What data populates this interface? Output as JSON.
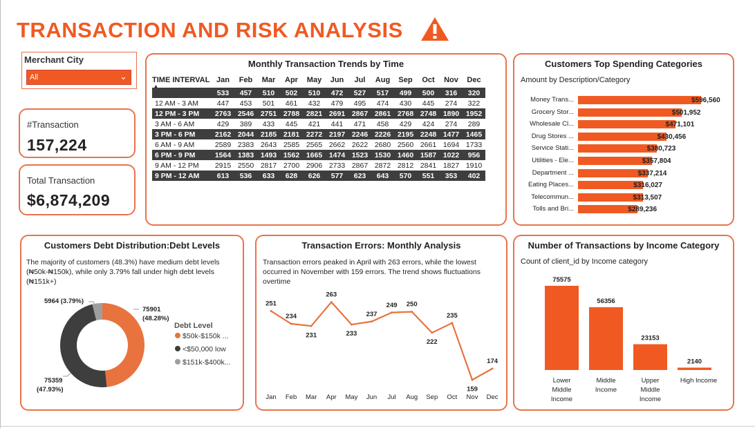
{
  "title": "TRANSACTION AND RISK ANALYSIS",
  "colors": {
    "accent": "#f05a22",
    "dark": "#3e3e3e",
    "grey": "#9e9e9e"
  },
  "slicer": {
    "label": "Merchant City",
    "value": "All"
  },
  "kpis": {
    "transactions_label": "#Transaction",
    "transactions_value": "157,224",
    "total_label": "Total Transaction",
    "total_value": "$6,874,209"
  },
  "heatmap": {
    "title": "Monthly Transaction Trends by Time",
    "col_header": "TIME INTERVAL",
    "months": [
      "Jan",
      "Feb",
      "Mar",
      "Apr",
      "May",
      "Jun",
      "Jul",
      "Aug",
      "Sep",
      "Oct",
      "Nov",
      "Dec"
    ],
    "rows": [
      {
        "label": "",
        "values": [
          533,
          457,
          510,
          502,
          510,
          472,
          527,
          517,
          499,
          500,
          316,
          320
        ],
        "dark": true
      },
      {
        "label": "12 AM - 3 AM",
        "values": [
          447,
          453,
          501,
          461,
          432,
          479,
          495,
          474,
          430,
          445,
          274,
          322
        ],
        "dark": false
      },
      {
        "label": "12 PM - 3 PM",
        "values": [
          2763,
          2546,
          2751,
          2788,
          2821,
          2691,
          2867,
          2861,
          2768,
          2748,
          1890,
          1952
        ],
        "dark": true
      },
      {
        "label": "3 AM - 6 AM",
        "values": [
          429,
          389,
          433,
          445,
          421,
          441,
          471,
          458,
          429,
          424,
          274,
          289
        ],
        "dark": false
      },
      {
        "label": "3 PM - 6 PM",
        "values": [
          2162,
          2044,
          2185,
          2181,
          2272,
          2197,
          2246,
          2226,
          2195,
          2248,
          1477,
          1465
        ],
        "dark": true
      },
      {
        "label": "6 AM - 9 AM",
        "values": [
          2589,
          2383,
          2643,
          2585,
          2565,
          2662,
          2622,
          2680,
          2560,
          2661,
          1694,
          1733
        ],
        "dark": false
      },
      {
        "label": "6 PM - 9 PM",
        "values": [
          1564,
          1383,
          1493,
          1562,
          1665,
          1474,
          1523,
          1530,
          1460,
          1587,
          1022,
          956
        ],
        "dark": true
      },
      {
        "label": "9 AM - 12 PM",
        "values": [
          2915,
          2550,
          2817,
          2700,
          2906,
          2733,
          2867,
          2872,
          2812,
          2841,
          1827,
          1910
        ],
        "dark": false
      },
      {
        "label": "9 PM - 12 AM",
        "values": [
          613,
          536,
          633,
          628,
          626,
          577,
          623,
          643,
          570,
          551,
          353,
          402
        ],
        "dark": true
      }
    ]
  },
  "spending": {
    "title": "Customers Top Spending Categories",
    "subtitle": "Amount by Description/Category",
    "items": [
      {
        "label": "Money Trans...",
        "value": 596560,
        "text": "$596,560"
      },
      {
        "label": "Grocery Stor...",
        "value": 501952,
        "text": "$501,952"
      },
      {
        "label": "Wholesale Cl...",
        "value": 471101,
        "text": "$471,101"
      },
      {
        "label": "Drug Stores ...",
        "value": 430456,
        "text": "$430,456"
      },
      {
        "label": "Service Stati...",
        "value": 380723,
        "text": "$380,723"
      },
      {
        "label": "Utilities - Ele...",
        "value": 357804,
        "text": "$357,804"
      },
      {
        "label": "Department ...",
        "value": 337214,
        "text": "$337,214"
      },
      {
        "label": "Eating Places...",
        "value": 316027,
        "text": "$316,027"
      },
      {
        "label": "Telecommun...",
        "value": 313507,
        "text": "$313,507"
      },
      {
        "label": "Tolls and Bri...",
        "value": 289236,
        "text": "$289,236"
      }
    ]
  },
  "debt": {
    "title": "Customers Debt Distribution:Debt Levels",
    "description": "The majority of customers (48.3%) have medium debt levels (₦50k-₦150k), while only 3.79% fall under high debt levels (₦151k+)",
    "legend_title": "Debt Level",
    "slices": [
      {
        "label": "$50k-$150k ...",
        "value": 75901,
        "pct": "48.28%",
        "color": "#e8733f"
      },
      {
        "label": "<$50,000 low",
        "value": 75359,
        "pct": "47.93%",
        "color": "#3e3e3e"
      },
      {
        "label": "$151k-$400k...",
        "value": 5964,
        "pct": "3.79%",
        "color": "#9e9e9e"
      }
    ],
    "callouts": [
      "75901",
      "(48.28%)",
      "75359",
      "(47.93%)",
      "5964 (3.79%)"
    ]
  },
  "errors": {
    "title": "Transaction Errors: Monthly Analysis",
    "description": "Transaction errors peaked in April with 263 errors, while the lowest occurred in November with 159 errors. The trend shows fluctuations overtime",
    "months": [
      "Jan",
      "Feb",
      "Mar",
      "Apr",
      "May",
      "Jun",
      "Jul",
      "Aug",
      "Sep",
      "Oct",
      "Nov",
      "Dec"
    ],
    "values": [
      251,
      234,
      231,
      263,
      233,
      237,
      249,
      250,
      222,
      235,
      159,
      174
    ]
  },
  "chart_data": [
    {
      "type": "line",
      "title": "Transaction Errors: Monthly Analysis",
      "x": [
        "Jan",
        "Feb",
        "Mar",
        "Apr",
        "May",
        "Jun",
        "Jul",
        "Aug",
        "Sep",
        "Oct",
        "Nov",
        "Dec"
      ],
      "values": [
        251,
        234,
        231,
        263,
        233,
        237,
        249,
        250,
        222,
        235,
        159,
        174
      ]
    },
    {
      "type": "bar",
      "title": "Number of Transactions by Income Category",
      "categories": [
        "Lower Middle Income",
        "Middle Income",
        "Upper Middle Income",
        "High Income"
      ],
      "values": [
        75575,
        56356,
        23153,
        2140
      ]
    },
    {
      "type": "bar",
      "title": "Customers Top Spending Categories",
      "categories": [
        "Money Trans...",
        "Grocery Stor...",
        "Wholesale Cl...",
        "Drug Stores ...",
        "Service Stati...",
        "Utilities - Ele...",
        "Department ...",
        "Eating Places...",
        "Telecommun...",
        "Tolls and Bri..."
      ],
      "values": [
        596560,
        501952,
        471101,
        430456,
        380723,
        357804,
        337214,
        316027,
        313507,
        289236
      ]
    },
    {
      "type": "pie",
      "title": "Customers Debt Distribution:Debt Levels",
      "categories": [
        "$50k-$150k ...",
        "<$50,000 low",
        "$151k-$400k..."
      ],
      "values": [
        75901,
        75359,
        5964
      ]
    }
  ],
  "income": {
    "title": "Number of Transactions by Income Category",
    "subtitle": "Count of client_id by Income category",
    "bars": [
      {
        "label_lines": [
          "Lower",
          "Middle",
          "Income"
        ],
        "value": 75575,
        "text": "75575"
      },
      {
        "label_lines": [
          "Middle",
          "Income"
        ],
        "value": 56356,
        "text": "56356"
      },
      {
        "label_lines": [
          "Upper",
          "Middle",
          "Income"
        ],
        "value": 23153,
        "text": "23153"
      },
      {
        "label_lines": [
          "High Income"
        ],
        "value": 2140,
        "text": "2140"
      }
    ]
  }
}
